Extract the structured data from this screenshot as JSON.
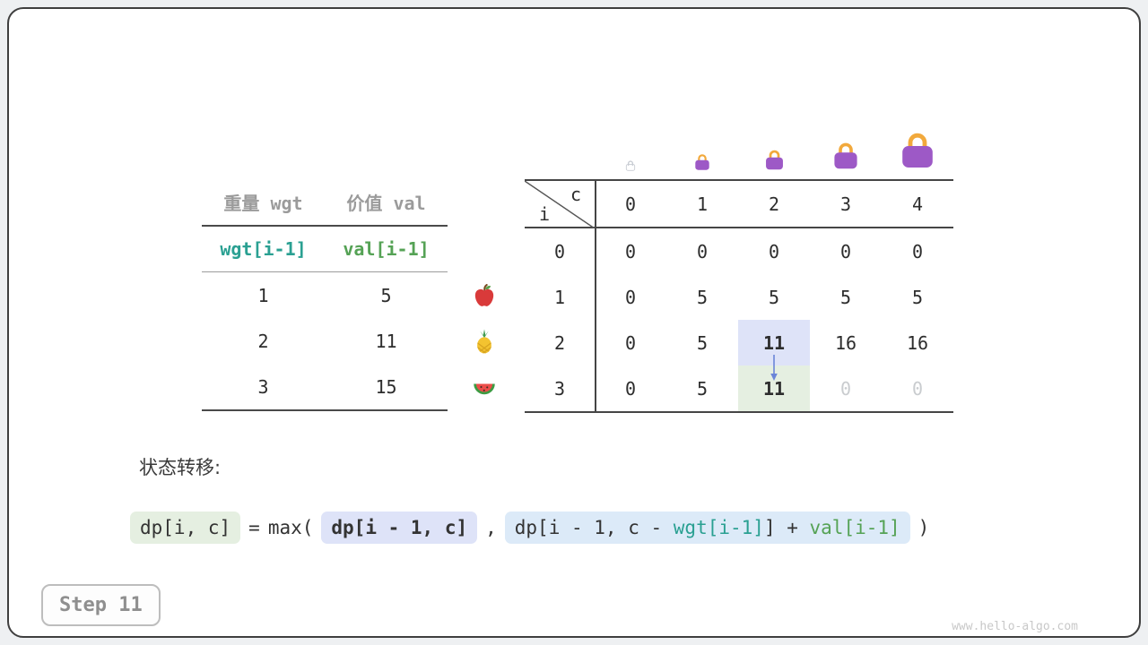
{
  "step_badge": "Step 11",
  "watermark": "www.hello-algo.com",
  "items_table": {
    "col1_header": "重量 wgt",
    "col2_header": "价值 val",
    "var_row": {
      "wgt": "wgt[i-1]",
      "val": "val[i-1]"
    },
    "rows": [
      {
        "icon": "apple",
        "wgt": "1",
        "val": "5"
      },
      {
        "icon": "pineapple",
        "wgt": "2",
        "val": "11"
      },
      {
        "icon": "watermelon",
        "wgt": "3",
        "val": "15"
      }
    ]
  },
  "dp_table": {
    "corner_col_label": "c",
    "corner_row_label": "i",
    "col_headers": [
      "0",
      "1",
      "2",
      "3",
      "4"
    ],
    "bags": [
      {
        "style": "ghost",
        "size": 14
      },
      {
        "style": "solid",
        "size": 22
      },
      {
        "style": "solid",
        "size": 27
      },
      {
        "style": "solid",
        "size": 36
      },
      {
        "style": "solid",
        "size": 48
      }
    ],
    "rows": [
      {
        "i": "0",
        "cells": [
          {
            "v": "0"
          },
          {
            "v": "0"
          },
          {
            "v": "0"
          },
          {
            "v": "0"
          },
          {
            "v": "0"
          }
        ]
      },
      {
        "i": "1",
        "cells": [
          {
            "v": "0"
          },
          {
            "v": "5"
          },
          {
            "v": "5"
          },
          {
            "v": "5"
          },
          {
            "v": "5"
          }
        ]
      },
      {
        "i": "2",
        "cells": [
          {
            "v": "0"
          },
          {
            "v": "5"
          },
          {
            "v": "11",
            "hl": "blue",
            "bold": true
          },
          {
            "v": "16"
          },
          {
            "v": "16"
          }
        ]
      },
      {
        "i": "3",
        "cells": [
          {
            "v": "0"
          },
          {
            "v": "5"
          },
          {
            "v": "11",
            "hl": "green",
            "bold": true
          },
          {
            "v": "0",
            "muted": true
          },
          {
            "v": "0",
            "muted": true
          }
        ]
      }
    ]
  },
  "transition": {
    "label": "状态转移:",
    "lhs": "dp[i, c]",
    "equals": "=",
    "max_open": "max(",
    "arg1": "dp[i - 1, c]",
    "comma": ",",
    "arg2": [
      {
        "t": "dp[i - 1, c - ",
        "c": "plain"
      },
      {
        "t": "wgt[i-1]",
        "c": "wgt"
      },
      {
        "t": "] + ",
        "c": "plain"
      },
      {
        "t": "val[i-1]",
        "c": "val"
      }
    ],
    "close_paren": ")"
  },
  "colors": {
    "bag_body": "#9d59c6",
    "bag_handle": "#f2a93c",
    "hl_blue": "#dee3f8",
    "hl_green": "#e5efe1",
    "hl_sky": "#dceaf8",
    "wgt_text": "#2aa092",
    "val_text": "#55a255",
    "muted_text": "#c9cccf",
    "arrow": "#6b85d8"
  }
}
